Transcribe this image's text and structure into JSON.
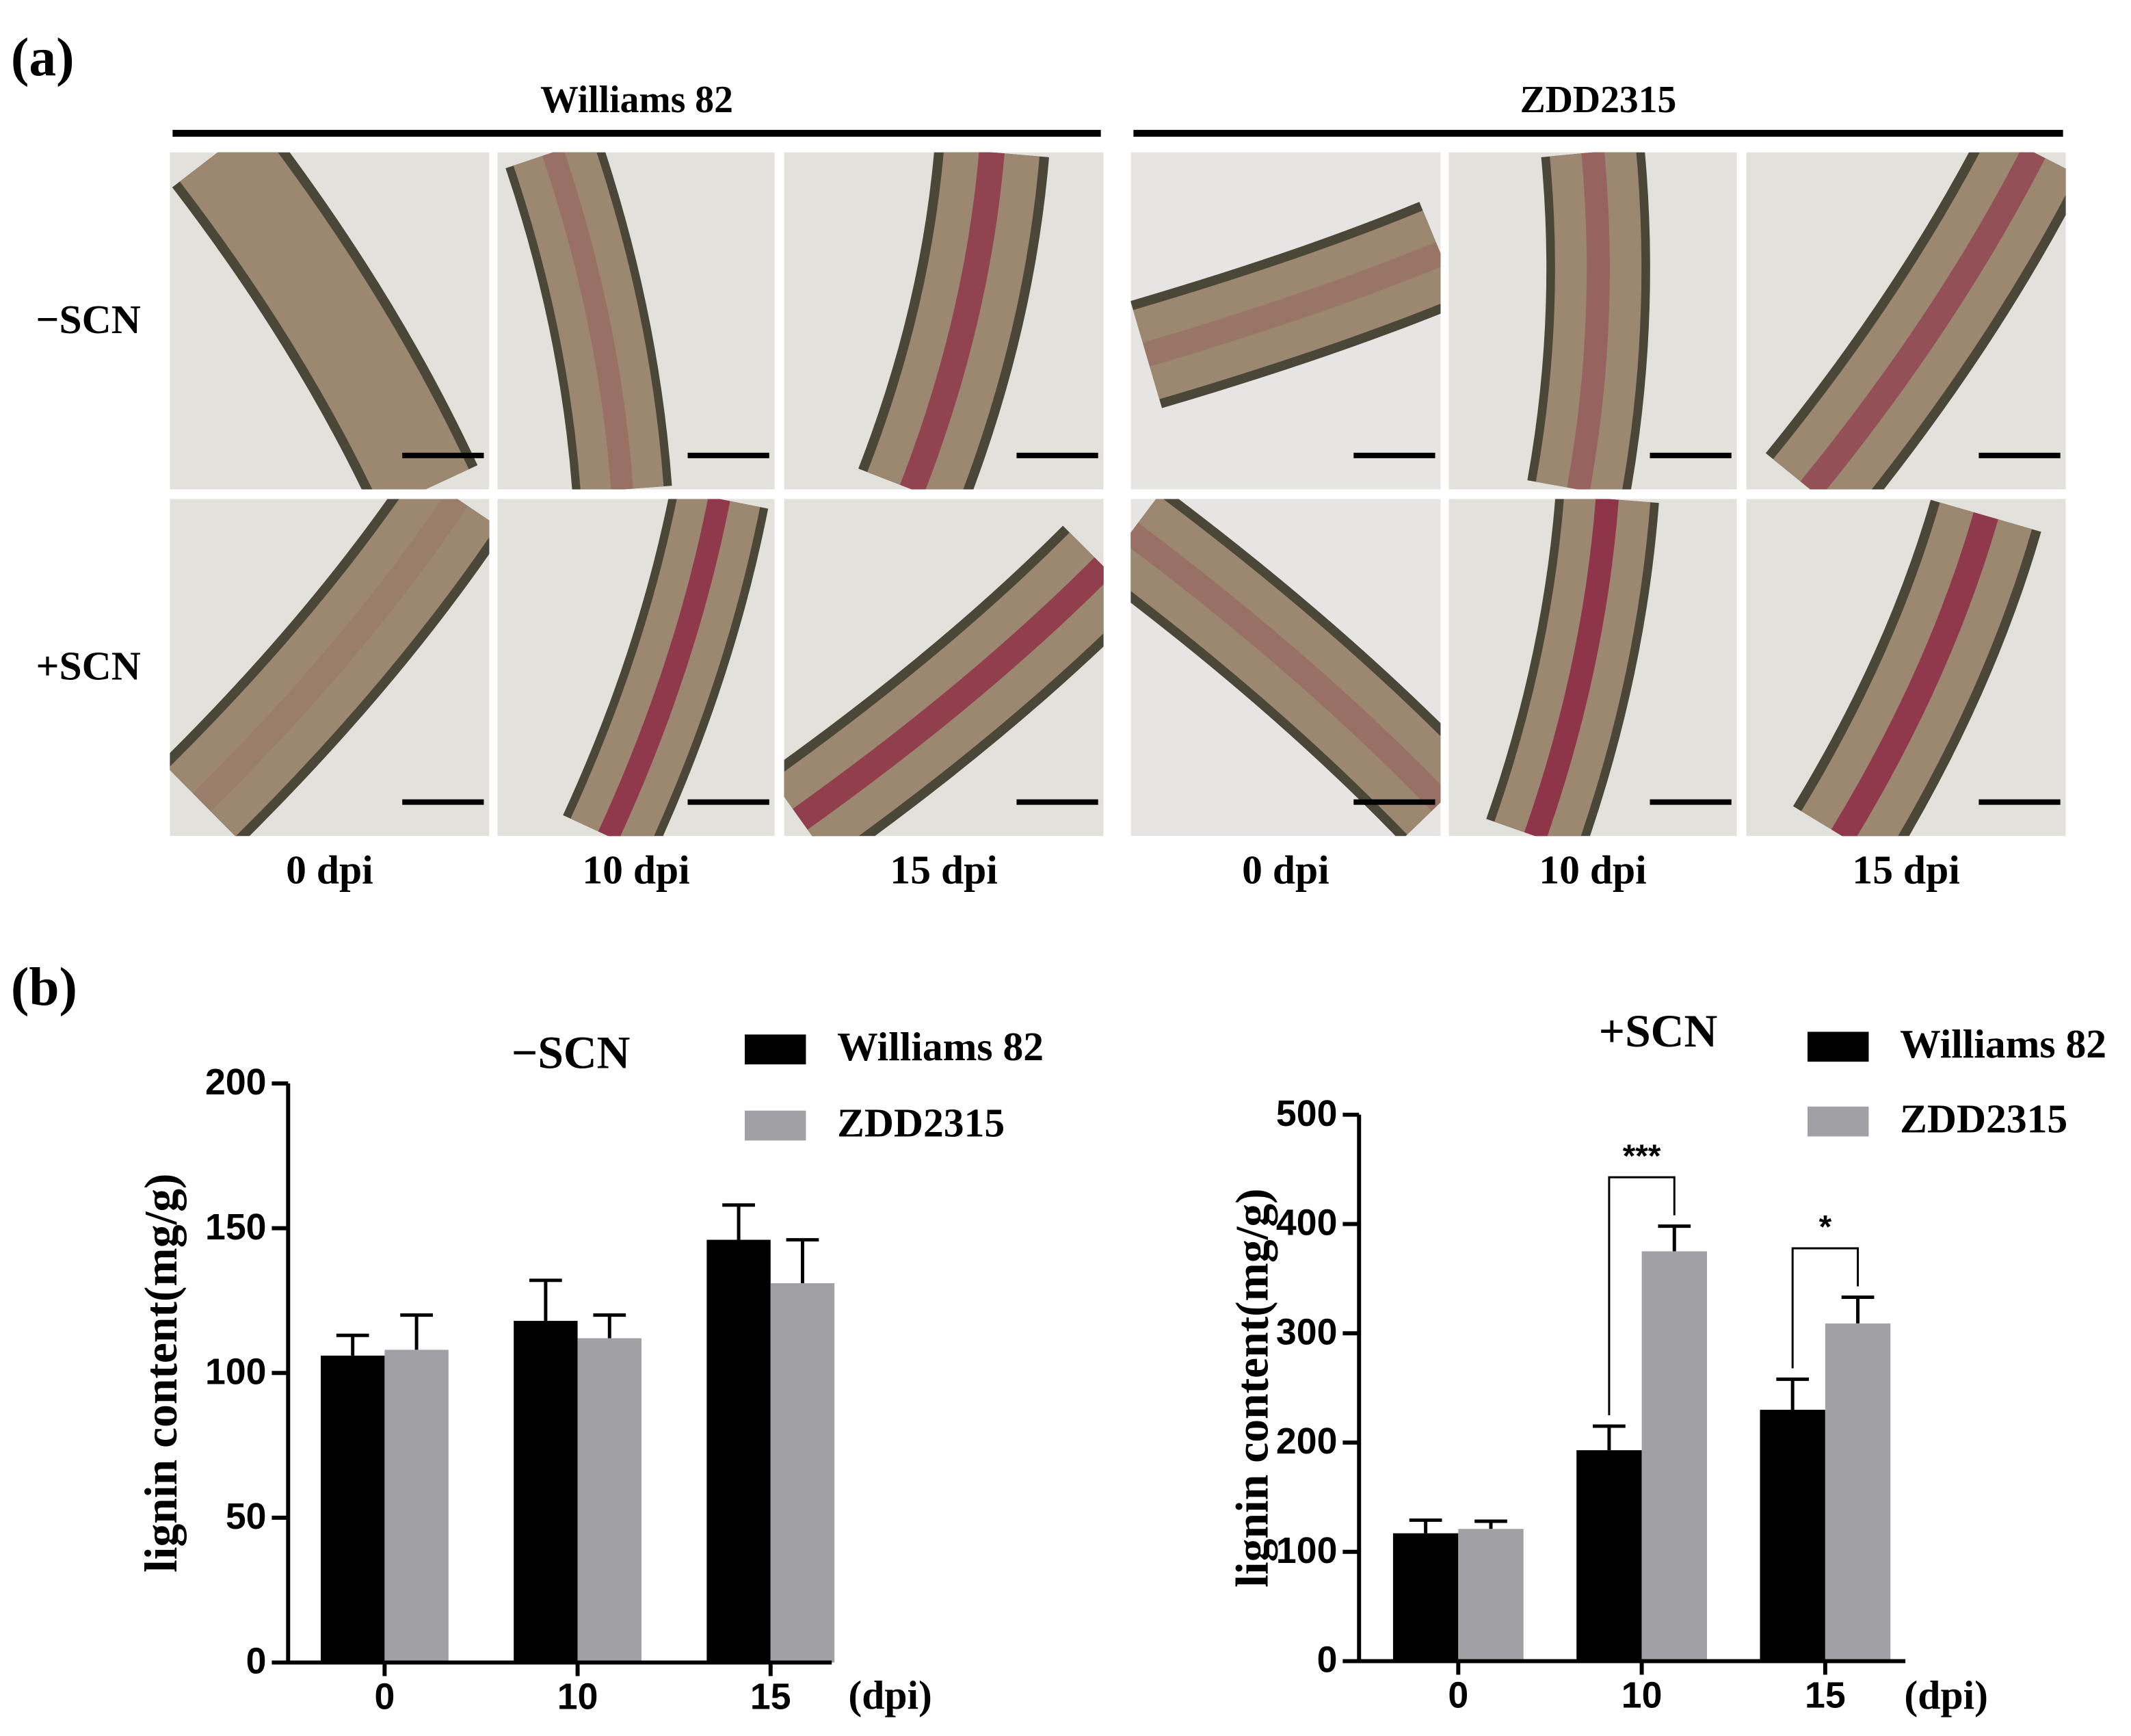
{
  "panel_a": {
    "label": "(a)",
    "groups": [
      "Williams 82",
      "ZDD2315"
    ],
    "rows": [
      "−SCN",
      "+SCN"
    ],
    "columns": [
      "0 dpi",
      "10 dpi",
      "15 dpi",
      "0 dpi",
      "10 dpi",
      "15 dpi"
    ]
  },
  "panel_b": {
    "label": "(b)"
  },
  "chart_data": [
    {
      "type": "bar",
      "title": "−SCN",
      "y_label": "lignin content(mg/g)",
      "x_unit": "(dpi)",
      "categories": [
        "0",
        "10",
        "15"
      ],
      "series": [
        {
          "name": "Williams 82",
          "color": "#000000",
          "values": [
            106,
            118,
            146
          ],
          "errors": [
            7,
            14,
            12
          ]
        },
        {
          "name": "ZDD2315",
          "color": "#a1a0a5",
          "values": [
            108,
            112,
            131
          ],
          "errors": [
            12,
            8,
            15
          ]
        }
      ],
      "ylim": [
        0,
        200
      ],
      "yticks": [
        0,
        50,
        100,
        150,
        200
      ]
    },
    {
      "type": "bar",
      "title": "+SCN",
      "y_label": "lignin content(mg/g)",
      "x_unit": "(dpi)",
      "categories": [
        "0",
        "10",
        "15"
      ],
      "series": [
        {
          "name": "Williams 82",
          "color": "#000000",
          "values": [
            117,
            193,
            230
          ],
          "errors": [
            12,
            22,
            28
          ]
        },
        {
          "name": "ZDD2315",
          "color": "#a1a0a5",
          "values": [
            121,
            375,
            309
          ],
          "errors": [
            7,
            23,
            24
          ]
        }
      ],
      "ylim": [
        0,
        500
      ],
      "yticks": [
        0,
        100,
        200,
        300,
        400,
        500
      ],
      "annotations": [
        {
          "text": "***",
          "x": "10"
        },
        {
          "text": "*",
          "x": "15"
        }
      ]
    }
  ]
}
